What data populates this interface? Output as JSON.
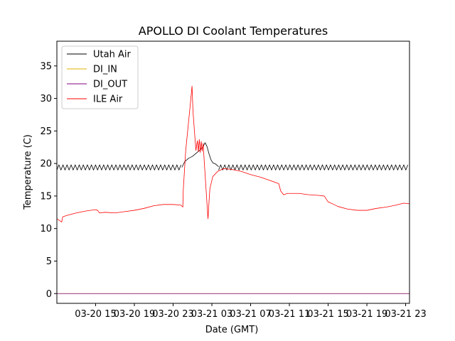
{
  "chart_data": {
    "type": "line",
    "title": "APOLLO DI Coolant Temperatures",
    "xlabel": "Date (GMT)",
    "ylabel": "Temperature (C)",
    "x_unit": "hours since 03-20 11:00 GMT",
    "xlim": [
      0,
      36.4
    ],
    "ylim": [
      -1.5,
      38.8
    ],
    "yticks": [
      0,
      5,
      10,
      15,
      20,
      25,
      30,
      35
    ],
    "xticks": [
      {
        "x": 4,
        "label": "03-20 15"
      },
      {
        "x": 8,
        "label": "03-20 19"
      },
      {
        "x": 12,
        "label": "03-20 23"
      },
      {
        "x": 16,
        "label": "03-21 03"
      },
      {
        "x": 20,
        "label": "03-21 07"
      },
      {
        "x": 24,
        "label": "03-21 11"
      },
      {
        "x": 28,
        "label": "03-21 15"
      },
      {
        "x": 32,
        "label": "03-21 19"
      },
      {
        "x": 36,
        "label": "03-21 23"
      }
    ],
    "legend_position": "top-left",
    "series": [
      {
        "name": "Utah Air",
        "color": "#000000",
        "oscillation": {
          "start": 0,
          "end": 12.9,
          "low": 19.0,
          "high": 19.8,
          "period": 0.42
        },
        "oscillation2": {
          "start": 16.7,
          "end": 36.4,
          "low": 19.0,
          "high": 19.8,
          "period": 0.42
        },
        "points": [
          [
            12.9,
            19.4
          ],
          [
            13.2,
            20.3
          ],
          [
            13.6,
            20.8
          ],
          [
            14.0,
            21.1
          ],
          [
            14.4,
            21.6
          ],
          [
            14.8,
            22.1
          ],
          [
            15.1,
            22.6
          ],
          [
            15.3,
            23.2
          ],
          [
            15.5,
            22.6
          ],
          [
            15.7,
            21.5
          ],
          [
            15.9,
            20.6
          ],
          [
            16.1,
            20.1
          ],
          [
            16.4,
            19.9
          ],
          [
            16.7,
            19.5
          ]
        ]
      },
      {
        "name": "DI_IN",
        "color": "#e0b000",
        "points": [
          [
            0,
            0.0
          ],
          [
            36.4,
            0.0
          ]
        ]
      },
      {
        "name": "DI_OUT",
        "color": "#800080",
        "points": [
          [
            0,
            0.0
          ],
          [
            36.4,
            0.0
          ]
        ]
      },
      {
        "name": "ILE Air",
        "color": "#ff0000",
        "points": [
          [
            0,
            11.5
          ],
          [
            0.3,
            11.2
          ],
          [
            0.5,
            11.0
          ],
          [
            0.6,
            11.8
          ],
          [
            1.0,
            12.0
          ],
          [
            2.0,
            12.4
          ],
          [
            3.0,
            12.7
          ],
          [
            4.0,
            12.9
          ],
          [
            4.2,
            12.8
          ],
          [
            4.4,
            12.4
          ],
          [
            5.0,
            12.5
          ],
          [
            6.0,
            12.4
          ],
          [
            7.0,
            12.6
          ],
          [
            8.0,
            12.8
          ],
          [
            9.0,
            13.1
          ],
          [
            10.0,
            13.5
          ],
          [
            11.0,
            13.7
          ],
          [
            12.0,
            13.7
          ],
          [
            12.8,
            13.6
          ],
          [
            13.0,
            13.3
          ],
          [
            13.05,
            16.0
          ],
          [
            13.3,
            22.0
          ],
          [
            13.6,
            26.5
          ],
          [
            13.8,
            29.5
          ],
          [
            13.95,
            31.9
          ],
          [
            14.05,
            28.0
          ],
          [
            14.2,
            25.0
          ],
          [
            14.35,
            22.0
          ],
          [
            14.5,
            23.5
          ],
          [
            14.6,
            21.8
          ],
          [
            14.7,
            23.7
          ],
          [
            14.8,
            21.7
          ],
          [
            14.9,
            23.4
          ],
          [
            15.0,
            21.9
          ],
          [
            15.1,
            23.1
          ],
          [
            15.2,
            20.6
          ],
          [
            15.4,
            16.0
          ],
          [
            15.6,
            11.5
          ],
          [
            15.7,
            14.0
          ],
          [
            15.8,
            16.2
          ],
          [
            16.1,
            18.0
          ],
          [
            16.6,
            18.8
          ],
          [
            17.2,
            19.2
          ],
          [
            18.0,
            19.1
          ],
          [
            19.0,
            18.8
          ],
          [
            20.0,
            18.3
          ],
          [
            21.0,
            17.9
          ],
          [
            22.0,
            17.4
          ],
          [
            22.9,
            16.9
          ],
          [
            23.1,
            15.8
          ],
          [
            23.4,
            15.2
          ],
          [
            23.8,
            15.4
          ],
          [
            25.0,
            15.4
          ],
          [
            26.0,
            15.2
          ],
          [
            27.0,
            15.1
          ],
          [
            27.6,
            15.0
          ],
          [
            28.0,
            14.1
          ],
          [
            28.6,
            13.7
          ],
          [
            29.0,
            13.4
          ],
          [
            30.0,
            13.0
          ],
          [
            31.0,
            12.8
          ],
          [
            32.0,
            12.8
          ],
          [
            33.0,
            13.1
          ],
          [
            34.0,
            13.3
          ],
          [
            35.0,
            13.6
          ],
          [
            35.8,
            13.9
          ],
          [
            36.4,
            13.8
          ]
        ]
      }
    ]
  }
}
